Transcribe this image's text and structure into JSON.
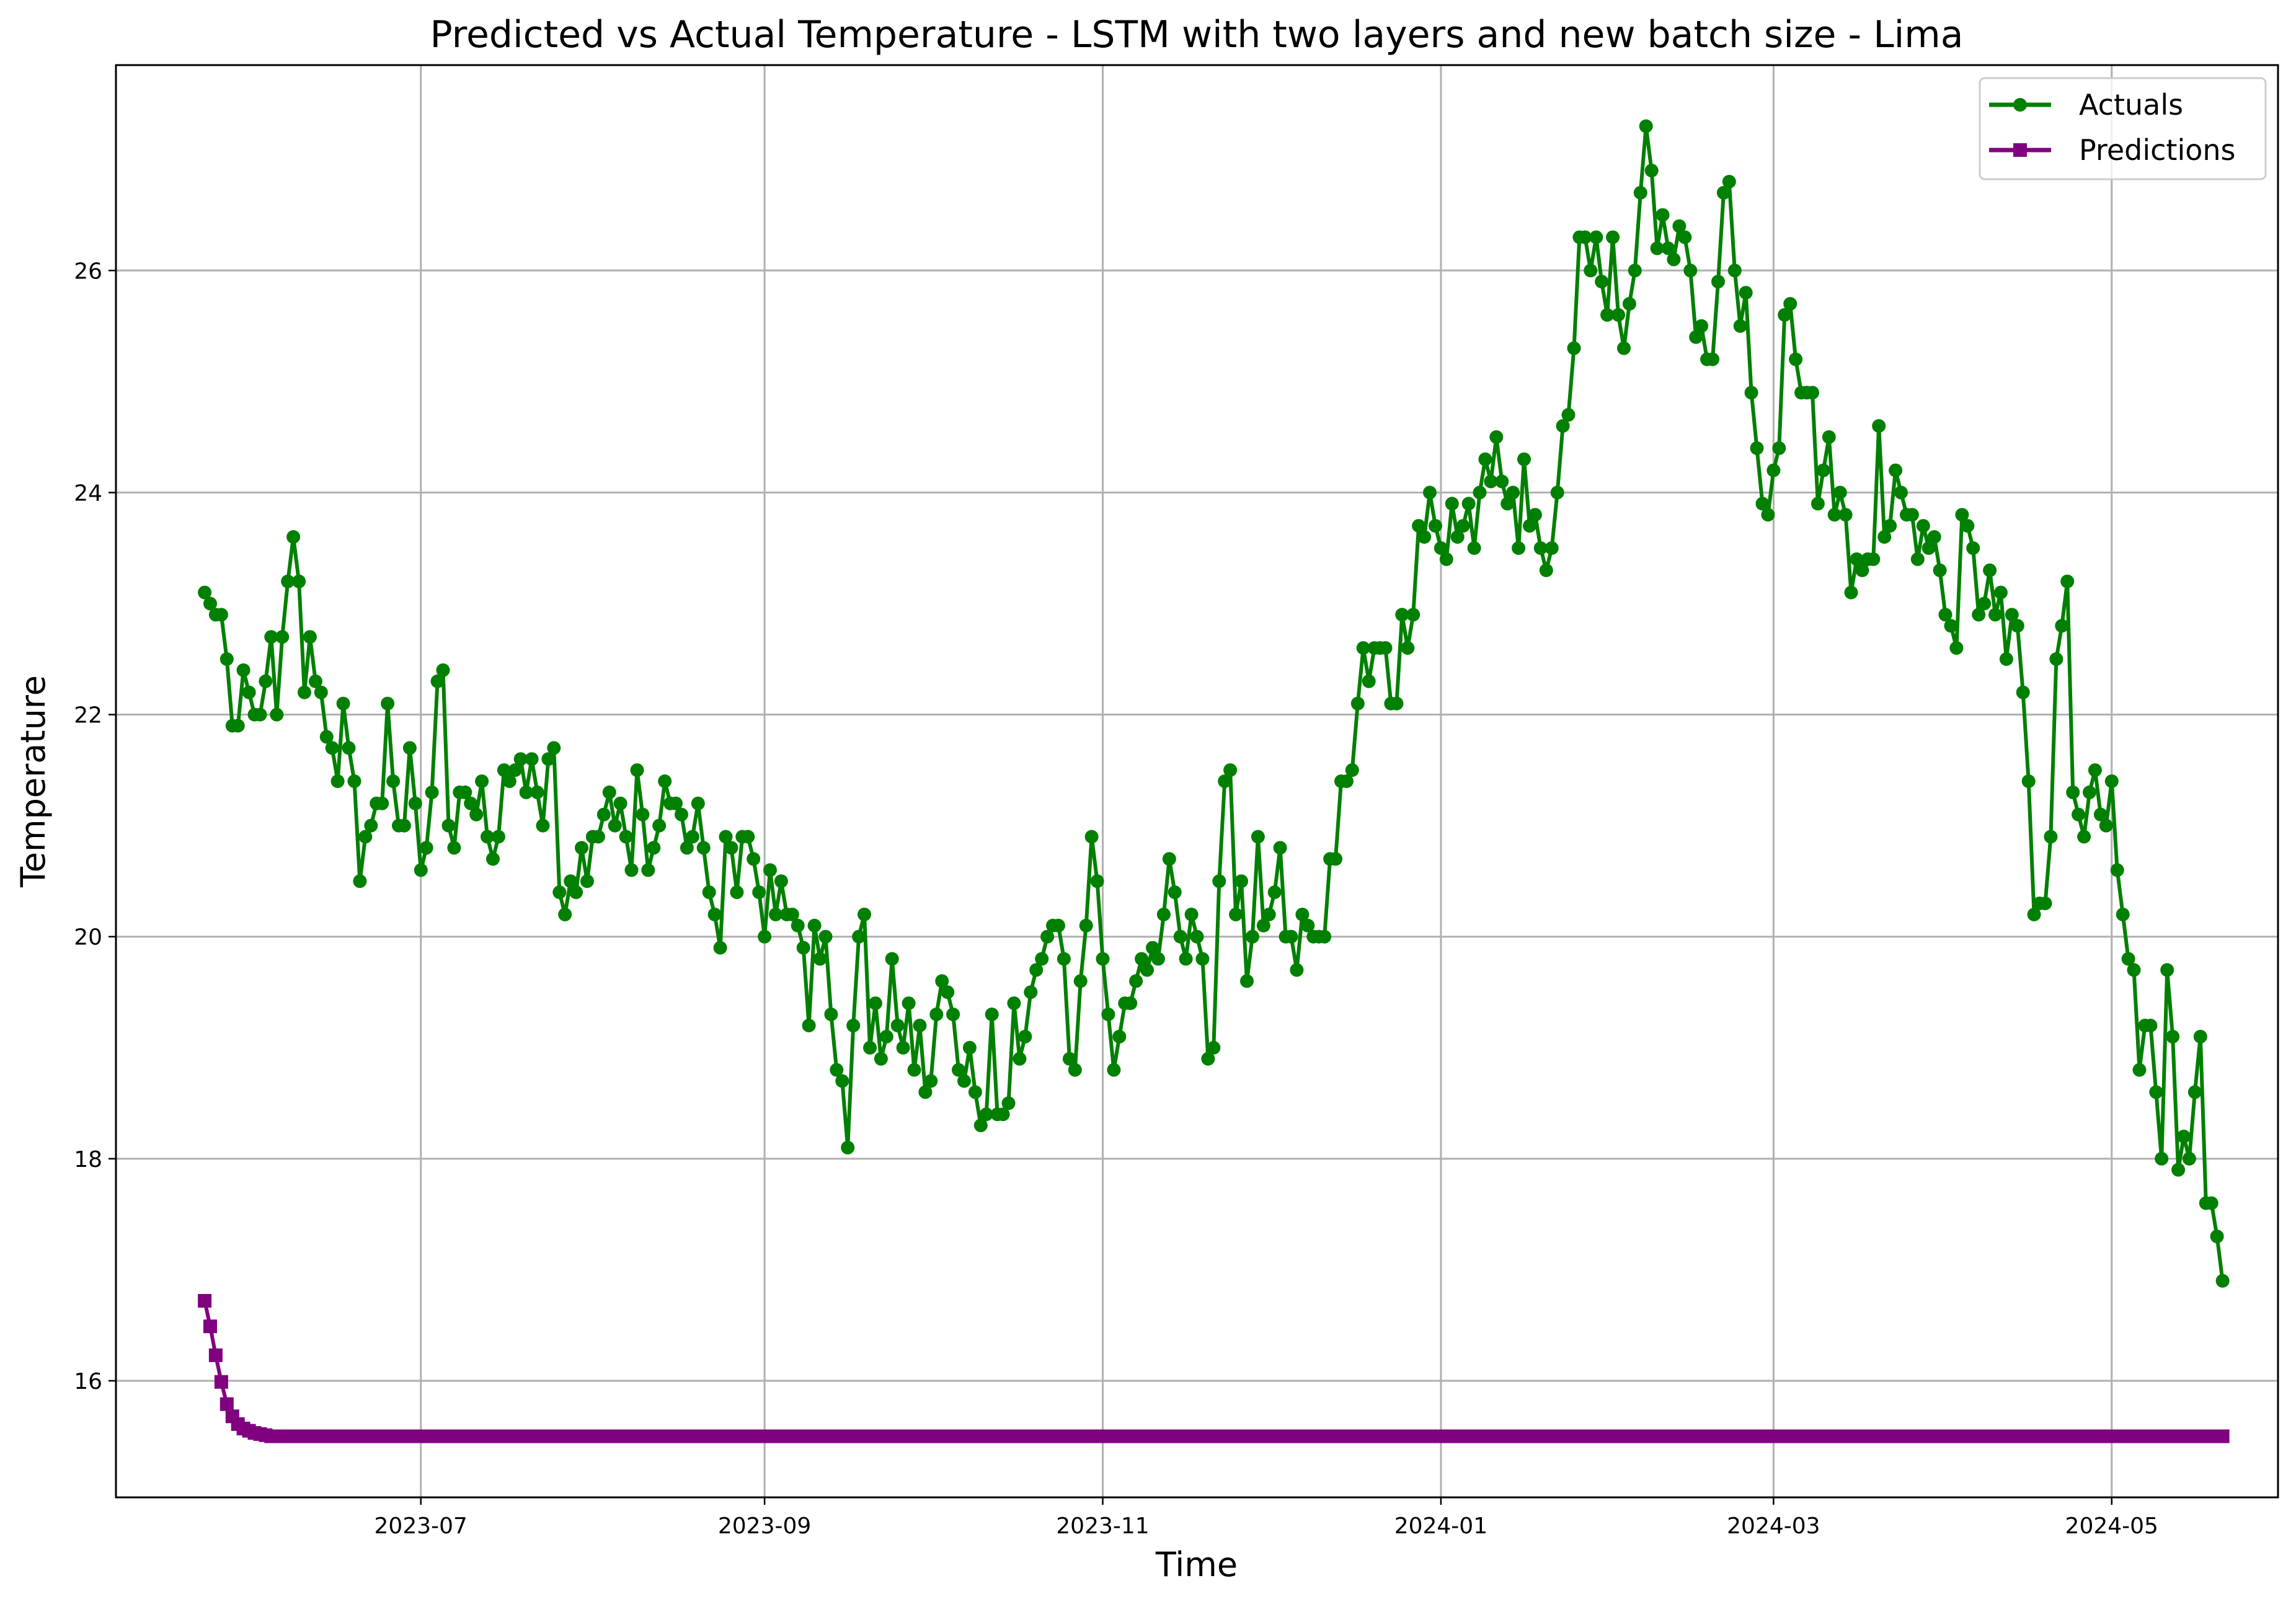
{
  "chart_data": {
    "type": "line",
    "title": "Predicted vs Actual Temperature - LSTM with two layers and new batch size - Lima",
    "xlabel": "Time",
    "ylabel": "Temperature",
    "x_range": [
      "2023-05-07",
      "2024-05-31"
    ],
    "ylim": [
      14.95,
      27.85
    ],
    "grid": true,
    "legend_position": "top-right",
    "x_ticks": [
      "2023-07",
      "2023-09",
      "2023-11",
      "2024-01",
      "2024-03",
      "2024-05"
    ],
    "x_tick_dates": [
      "2023-07-01",
      "2023-09-01",
      "2023-11-01",
      "2024-01-01",
      "2024-03-01",
      "2024-05-01"
    ],
    "y_ticks": [
      16,
      18,
      20,
      22,
      24,
      26
    ],
    "start_date": "2023-05-23",
    "series": [
      {
        "name": "Actuals",
        "color": "#008000",
        "marker": "circle",
        "values": [
          23.1,
          23.0,
          22.9,
          22.9,
          22.5,
          21.9,
          21.9,
          22.4,
          22.2,
          22.0,
          22.0,
          22.3,
          22.7,
          22.0,
          22.7,
          23.2,
          23.6,
          23.2,
          22.2,
          22.7,
          22.3,
          22.2,
          21.8,
          21.7,
          21.4,
          22.1,
          21.7,
          21.4,
          20.5,
          20.9,
          21.0,
          21.2,
          21.2,
          22.1,
          21.4,
          21.0,
          21.0,
          21.7,
          21.2,
          20.6,
          20.8,
          21.3,
          22.3,
          22.4,
          21.0,
          20.8,
          21.3,
          21.3,
          21.2,
          21.1,
          21.4,
          20.9,
          20.7,
          20.9,
          21.5,
          21.4,
          21.5,
          21.6,
          21.3,
          21.6,
          21.3,
          21.0,
          21.6,
          21.7,
          20.4,
          20.2,
          20.5,
          20.4,
          20.8,
          20.5,
          20.9,
          20.9,
          21.1,
          21.3,
          21.0,
          21.2,
          20.9,
          20.6,
          21.5,
          21.1,
          20.6,
          20.8,
          21.0,
          21.4,
          21.2,
          21.2,
          21.1,
          20.8,
          20.9,
          21.2,
          20.8,
          20.4,
          20.2,
          19.9,
          20.9,
          20.8,
          20.4,
          20.9,
          20.9,
          20.7,
          20.4,
          20.0,
          20.6,
          20.2,
          20.5,
          20.2,
          20.2,
          20.1,
          19.9,
          19.2,
          20.1,
          19.8,
          20.0,
          19.3,
          18.8,
          18.7,
          18.1,
          19.2,
          20.0,
          20.2,
          19.0,
          19.4,
          18.9,
          19.1,
          19.8,
          19.2,
          19.0,
          19.4,
          18.8,
          19.2,
          18.6,
          18.7,
          19.3,
          19.6,
          19.5,
          19.3,
          18.8,
          18.7,
          19.0,
          18.6,
          18.3,
          18.4,
          19.3,
          18.4,
          18.4,
          18.5,
          19.4,
          18.9,
          19.1,
          19.5,
          19.7,
          19.8,
          20.0,
          20.1,
          20.1,
          19.8,
          18.9,
          18.8,
          19.6,
          20.1,
          20.9,
          20.5,
          19.8,
          19.3,
          18.8,
          19.1,
          19.4,
          19.4,
          19.6,
          19.8,
          19.7,
          19.9,
          19.8,
          20.2,
          20.7,
          20.4,
          20.0,
          19.8,
          20.2,
          20.0,
          19.8,
          18.9,
          19.0,
          20.5,
          21.4,
          21.5,
          20.2,
          20.5,
          19.6,
          20.0,
          20.9,
          20.1,
          20.2,
          20.4,
          20.8,
          20.0,
          20.0,
          19.7,
          20.2,
          20.1,
          20.0,
          20.0,
          20.0,
          20.7,
          20.7,
          21.4,
          21.4,
          21.5,
          22.1,
          22.6,
          22.3,
          22.6,
          22.6,
          22.6,
          22.1,
          22.1,
          22.9,
          22.6,
          22.9,
          23.7,
          23.6,
          24.0,
          23.7,
          23.5,
          23.4,
          23.9,
          23.6,
          23.7,
          23.9,
          23.5,
          24.0,
          24.3,
          24.1,
          24.5,
          24.1,
          23.9,
          24.0,
          23.5,
          24.3,
          23.7,
          23.8,
          23.5,
          23.3,
          23.5,
          24.0,
          24.6,
          24.7,
          25.3,
          26.3,
          26.3,
          26.0,
          26.3,
          25.9,
          25.6,
          26.3,
          25.6,
          25.3,
          25.7,
          26.0,
          26.7,
          27.3,
          26.9,
          26.2,
          26.5,
          26.2,
          26.1,
          26.4,
          26.3,
          26.0,
          25.4,
          25.5,
          25.2,
          25.2,
          25.9,
          26.7,
          26.8,
          26.0,
          25.5,
          25.8,
          24.9,
          24.4,
          23.9,
          23.8,
          24.2,
          24.4,
          25.6,
          25.7,
          25.2,
          24.9,
          24.9,
          24.9,
          23.9,
          24.2,
          24.5,
          23.8,
          24.0,
          23.8,
          23.1,
          23.4,
          23.3,
          23.4,
          23.4,
          24.6,
          23.6,
          23.7,
          24.2,
          24.0,
          23.8,
          23.8,
          23.4,
          23.7,
          23.5,
          23.6,
          23.3,
          22.9,
          22.8,
          22.6,
          23.8,
          23.7,
          23.5,
          22.9,
          23.0,
          23.3,
          22.9,
          23.1,
          22.5,
          22.9,
          22.8,
          22.2,
          21.4,
          20.2,
          20.3,
          20.3,
          20.9,
          22.5,
          22.8,
          23.2,
          21.3,
          21.1,
          20.9,
          21.3,
          21.5,
          21.1,
          21.0,
          21.4,
          20.6,
          20.2,
          19.8,
          19.7,
          18.8,
          19.2,
          19.2,
          18.6,
          18.0,
          19.7,
          19.1,
          17.9,
          18.2,
          18.0,
          18.6,
          19.1,
          17.6,
          17.6,
          17.3,
          16.9
        ]
      },
      {
        "name": "Predictions",
        "color": "#800080",
        "marker": "square",
        "values": [
          16.72,
          16.49,
          16.23,
          15.99,
          15.79,
          15.68,
          15.61,
          15.57,
          15.55,
          15.53,
          15.52,
          15.51,
          15.5,
          15.5
        ],
        "fill_value": 15.5
      }
    ]
  }
}
